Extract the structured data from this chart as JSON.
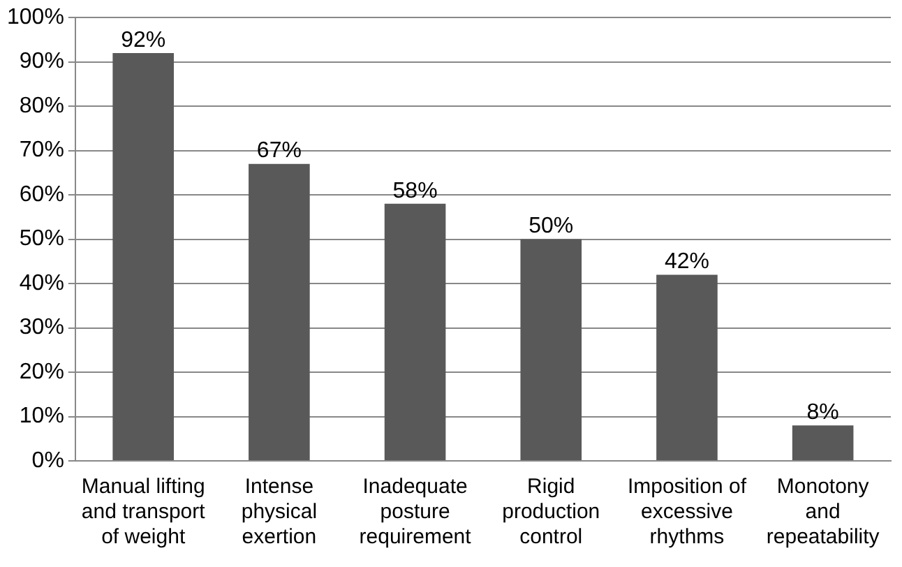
{
  "chart_data": {
    "type": "bar",
    "categories": [
      "Manual lifting and transport of weight",
      "Intense physical exertion",
      "Inadequate posture requirement",
      "Rigid production control",
      "Imposition of excessive rhythms",
      "Monotony and repeatability"
    ],
    "values": [
      92,
      67,
      58,
      50,
      42,
      8
    ],
    "color": "#595959",
    "value_labels": [
      "92%",
      "67%",
      "58%",
      "50%",
      "42%",
      "8%"
    ],
    "ylim": [
      0,
      100
    ],
    "yticks": [
      {
        "value": 0,
        "label": "0%"
      },
      {
        "value": 10,
        "label": "10%"
      },
      {
        "value": 20,
        "label": "20%"
      },
      {
        "value": 30,
        "label": "30%"
      },
      {
        "value": 40,
        "label": "40%"
      },
      {
        "value": 50,
        "label": "50%"
      },
      {
        "value": 60,
        "label": "60%"
      },
      {
        "value": 70,
        "label": "70%"
      },
      {
        "value": 80,
        "label": "80%"
      },
      {
        "value": 90,
        "label": "90%"
      },
      {
        "value": 100,
        "label": "100%"
      }
    ],
    "grid": "y",
    "legend": false
  }
}
